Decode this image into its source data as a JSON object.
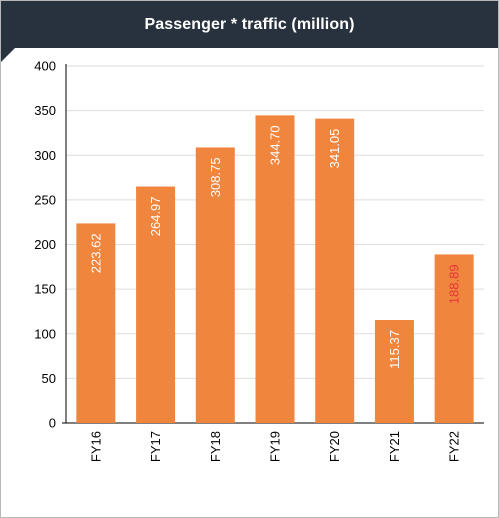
{
  "chart_data": {
    "type": "bar",
    "title": "Passenger * traffic (million)",
    "xlabel": "",
    "ylabel": "",
    "categories": [
      "FY16",
      "FY17",
      "FY18",
      "FY19",
      "FY20",
      "FY21",
      "FY22"
    ],
    "values": [
      223.62,
      264.97,
      308.75,
      344.7,
      341.05,
      115.37,
      188.89
    ],
    "data_labels": [
      "223.62",
      "264.97",
      "308.75",
      "344.70",
      "341.05",
      "115.37",
      "188.89"
    ],
    "ylim": [
      0,
      400
    ],
    "yticks": [
      0,
      50,
      100,
      150,
      200,
      250,
      300,
      350,
      400
    ],
    "grid": true,
    "legend": "none",
    "bar_color": "#f0853e",
    "label_color": "#ffffff",
    "highlight_label_color": "#e8343a",
    "highlight_index": 6,
    "title_bar_color": "#28323f",
    "grid_color": "#dddddd"
  }
}
